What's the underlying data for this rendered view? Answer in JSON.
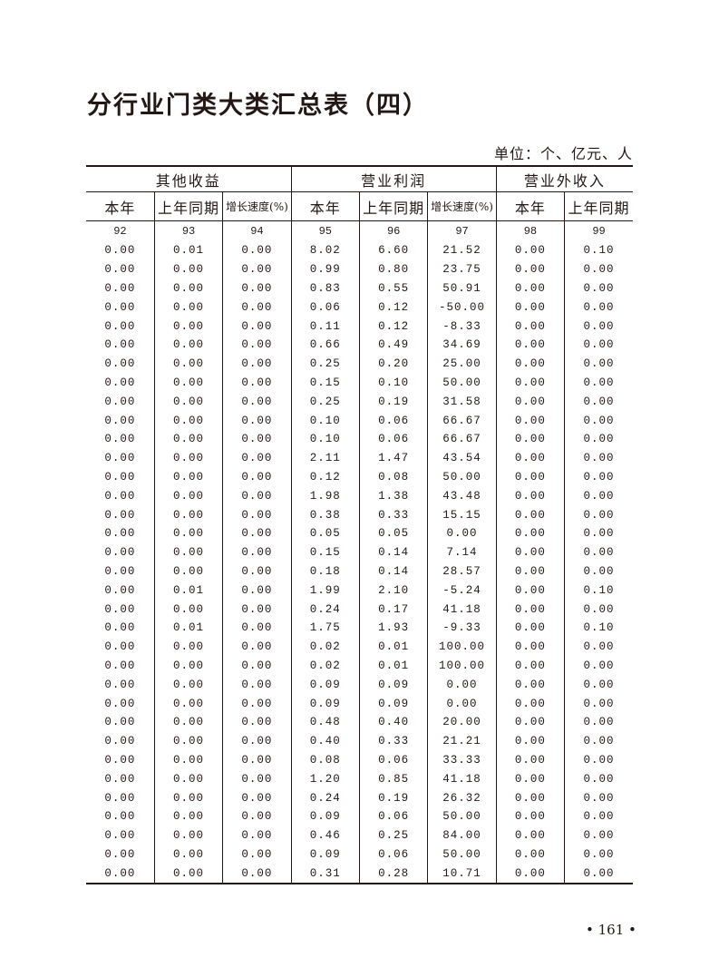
{
  "title": "分行业门类大类汇总表（四）",
  "unit": "单位：个、亿元、人",
  "groups": [
    "其他收益",
    "营业利润",
    "营业外收入"
  ],
  "subheaders": [
    "本年",
    "上年同期",
    "增长速度(%)",
    "本年",
    "上年同期",
    "增长速度(%)",
    "本年",
    "上年同期"
  ],
  "column_numbers": [
    "92",
    "93",
    "94",
    "95",
    "96",
    "97",
    "98",
    "99"
  ],
  "rows": [
    [
      "0.00",
      "0.01",
      "0.00",
      "8.02",
      "6.60",
      "21.52",
      "0.00",
      "0.10"
    ],
    [
      "0.00",
      "0.00",
      "0.00",
      "0.99",
      "0.80",
      "23.75",
      "0.00",
      "0.00"
    ],
    [
      "0.00",
      "0.00",
      "0.00",
      "0.83",
      "0.55",
      "50.91",
      "0.00",
      "0.00"
    ],
    [
      "0.00",
      "0.00",
      "0.00",
      "0.06",
      "0.12",
      "-50.00",
      "0.00",
      "0.00"
    ],
    [
      "0.00",
      "0.00",
      "0.00",
      "0.11",
      "0.12",
      "-8.33",
      "0.00",
      "0.00"
    ],
    [
      "0.00",
      "0.00",
      "0.00",
      "0.66",
      "0.49",
      "34.69",
      "0.00",
      "0.00"
    ],
    [
      "0.00",
      "0.00",
      "0.00",
      "0.25",
      "0.20",
      "25.00",
      "0.00",
      "0.00"
    ],
    [
      "0.00",
      "0.00",
      "0.00",
      "0.15",
      "0.10",
      "50.00",
      "0.00",
      "0.00"
    ],
    [
      "0.00",
      "0.00",
      "0.00",
      "0.25",
      "0.19",
      "31.58",
      "0.00",
      "0.00"
    ],
    [
      "0.00",
      "0.00",
      "0.00",
      "0.10",
      "0.06",
      "66.67",
      "0.00",
      "0.00"
    ],
    [
      "0.00",
      "0.00",
      "0.00",
      "0.10",
      "0.06",
      "66.67",
      "0.00",
      "0.00"
    ],
    [
      "0.00",
      "0.00",
      "0.00",
      "2.11",
      "1.47",
      "43.54",
      "0.00",
      "0.00"
    ],
    [
      "0.00",
      "0.00",
      "0.00",
      "0.12",
      "0.08",
      "50.00",
      "0.00",
      "0.00"
    ],
    [
      "0.00",
      "0.00",
      "0.00",
      "1.98",
      "1.38",
      "43.48",
      "0.00",
      "0.00"
    ],
    [
      "0.00",
      "0.00",
      "0.00",
      "0.38",
      "0.33",
      "15.15",
      "0.00",
      "0.00"
    ],
    [
      "0.00",
      "0.00",
      "0.00",
      "0.05",
      "0.05",
      "0.00",
      "0.00",
      "0.00"
    ],
    [
      "0.00",
      "0.00",
      "0.00",
      "0.15",
      "0.14",
      "7.14",
      "0.00",
      "0.00"
    ],
    [
      "0.00",
      "0.00",
      "0.00",
      "0.18",
      "0.14",
      "28.57",
      "0.00",
      "0.00"
    ],
    [
      "0.00",
      "0.01",
      "0.00",
      "1.99",
      "2.10",
      "-5.24",
      "0.00",
      "0.10"
    ],
    [
      "0.00",
      "0.00",
      "0.00",
      "0.24",
      "0.17",
      "41.18",
      "0.00",
      "0.00"
    ],
    [
      "0.00",
      "0.01",
      "0.00",
      "1.75",
      "1.93",
      "-9.33",
      "0.00",
      "0.10"
    ],
    [
      "0.00",
      "0.00",
      "0.00",
      "0.02",
      "0.01",
      "100.00",
      "0.00",
      "0.00"
    ],
    [
      "0.00",
      "0.00",
      "0.00",
      "0.02",
      "0.01",
      "100.00",
      "0.00",
      "0.00"
    ],
    [
      "0.00",
      "0.00",
      "0.00",
      "0.09",
      "0.09",
      "0.00",
      "0.00",
      "0.00"
    ],
    [
      "0.00",
      "0.00",
      "0.00",
      "0.09",
      "0.09",
      "0.00",
      "0.00",
      "0.00"
    ],
    [
      "0.00",
      "0.00",
      "0.00",
      "0.48",
      "0.40",
      "20.00",
      "0.00",
      "0.00"
    ],
    [
      "0.00",
      "0.00",
      "0.00",
      "0.40",
      "0.33",
      "21.21",
      "0.00",
      "0.00"
    ],
    [
      "0.00",
      "0.00",
      "0.00",
      "0.08",
      "0.06",
      "33.33",
      "0.00",
      "0.00"
    ],
    [
      "0.00",
      "0.00",
      "0.00",
      "1.20",
      "0.85",
      "41.18",
      "0.00",
      "0.00"
    ],
    [
      "0.00",
      "0.00",
      "0.00",
      "0.24",
      "0.19",
      "26.32",
      "0.00",
      "0.00"
    ],
    [
      "0.00",
      "0.00",
      "0.00",
      "0.09",
      "0.06",
      "50.00",
      "0.00",
      "0.00"
    ],
    [
      "0.00",
      "0.00",
      "0.00",
      "0.46",
      "0.25",
      "84.00",
      "0.00",
      "0.00"
    ],
    [
      "0.00",
      "0.00",
      "0.00",
      "0.09",
      "0.06",
      "50.00",
      "0.00",
      "0.00"
    ],
    [
      "0.00",
      "0.00",
      "0.00",
      "0.31",
      "0.28",
      "10.71",
      "0.00",
      "0.00"
    ]
  ],
  "page_number": "• 161 •"
}
